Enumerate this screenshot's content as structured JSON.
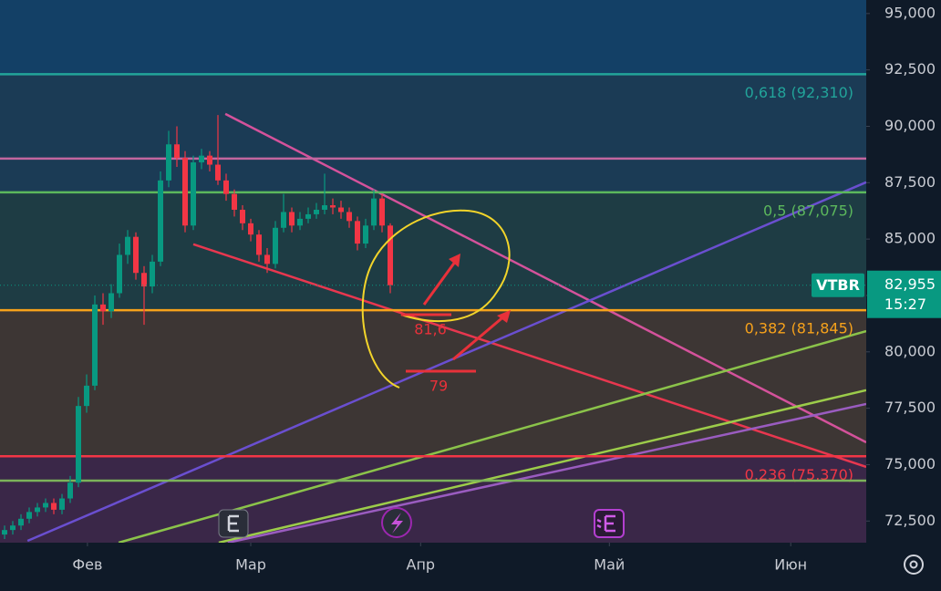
{
  "chart_data": {
    "type": "candlestick",
    "symbol": "VTBR",
    "last_price": 82955,
    "last_price_label": "82,955",
    "last_time": "15:27",
    "last_color": "#089981",
    "up_color": "#089981",
    "down_color": "#f23645",
    "background_color": "#134066",
    "xlim": [
      -0.556,
      105
    ],
    "xticks": [
      {
        "value": 10.1,
        "label": "Фев"
      },
      {
        "value": 30,
        "label": "Мар"
      },
      {
        "value": 50.7,
        "label": "Апр"
      },
      {
        "value": 73.7,
        "label": "Май"
      },
      {
        "value": 95.8,
        "label": "Июн"
      }
    ],
    "ylim": [
      71540,
      95600
    ],
    "yticks": [
      {
        "value": 72500,
        "label": "72,500"
      },
      {
        "value": 75000,
        "label": "75,000"
      },
      {
        "value": 77500,
        "label": "77,500"
      },
      {
        "value": 80000,
        "label": "80,000"
      },
      {
        "value": 82500,
        "label": "82,500"
      },
      {
        "value": 85000,
        "label": "85,000"
      },
      {
        "value": 87500,
        "label": "87,500"
      },
      {
        "value": 90000,
        "label": "90,000"
      },
      {
        "value": 92500,
        "label": "92,500"
      },
      {
        "value": 95000,
        "label": "95,000"
      }
    ],
    "open": [
      71900,
      72100,
      72300,
      72600,
      72900,
      73100,
      73300,
      73000,
      73500,
      74200,
      77600,
      78500,
      82100,
      81800,
      82600,
      84300,
      85100,
      83500,
      82900,
      84000,
      87600,
      89200,
      88600,
      85600,
      88400,
      88700,
      88300,
      87600,
      87000,
      86300,
      85700,
      85200,
      84300,
      83900,
      85500,
      86200,
      85600,
      85900,
      86100,
      86300,
      86500,
      86400,
      86200,
      85800,
      84800,
      85600,
      86800,
      85600
    ],
    "high": [
      72300,
      72500,
      72800,
      73100,
      73300,
      73500,
      73500,
      73700,
      74500,
      78000,
      79000,
      82500,
      82600,
      83000,
      84800,
      85400,
      85300,
      83800,
      84300,
      88000,
      89800,
      90000,
      88900,
      88700,
      89000,
      88900,
      90500,
      87900,
      87200,
      86500,
      85900,
      85400,
      84600,
      85800,
      87000,
      86400,
      86200,
      86400,
      86600,
      87900,
      86800,
      86700,
      86400,
      86000,
      85900,
      87200,
      87000,
      85700
    ],
    "low": [
      71700,
      71900,
      72100,
      72400,
      72700,
      72900,
      72800,
      72800,
      73300,
      74000,
      77300,
      78300,
      81200,
      81500,
      82400,
      83900,
      83200,
      81200,
      82600,
      83800,
      87300,
      88200,
      85300,
      85400,
      88100,
      88000,
      87400,
      86700,
      86000,
      85400,
      84900,
      84000,
      83500,
      83700,
      85300,
      85300,
      85400,
      85700,
      85900,
      86100,
      86100,
      85900,
      85500,
      84500,
      84600,
      85400,
      85300,
      82600
    ],
    "close": [
      72100,
      72300,
      72600,
      72900,
      73100,
      73300,
      73000,
      73500,
      74200,
      77600,
      78500,
      82100,
      81800,
      82600,
      84300,
      85100,
      83500,
      82900,
      84000,
      87600,
      89200,
      88600,
      85600,
      88400,
      88700,
      88300,
      87600,
      87000,
      86300,
      85700,
      85200,
      84300,
      83900,
      85500,
      86200,
      85600,
      85900,
      86100,
      86300,
      86500,
      86400,
      86200,
      85800,
      84800,
      85600,
      86800,
      85600,
      82955
    ],
    "levels": [
      {
        "value": 92310,
        "label": "0,618 (92,310)",
        "color": "#22a49a",
        "fill": "#1b3b55"
      },
      {
        "value": 88570,
        "color": "#c2669f"
      },
      {
        "value": 87075,
        "label": "0,5 (87,075)",
        "color": "#5cb85c",
        "fill": "#1e3c44"
      },
      {
        "value": 81845,
        "label": "0,382 (81,845)",
        "color": "#f7a21b",
        "fill": "#3d3634"
      },
      {
        "value": 75370,
        "label": "0,236 (75,370)",
        "color": "#f23645",
        "fill": "#3a2748"
      },
      {
        "value": 74290,
        "color": "#7cb35a"
      }
    ],
    "trendlines": [
      {
        "x": [
          26.9,
          105
        ],
        "y": [
          90550,
          75990
        ],
        "color": "#d4529b"
      },
      {
        "x": [
          23,
          105
        ],
        "y": [
          84770,
          74900
        ],
        "color": "#e8374f"
      },
      {
        "x": [
          2.8,
          105
        ],
        "y": [
          71620,
          87520
        ],
        "color": "#6a4fd0"
      },
      {
        "x": [
          13.9,
          105
        ],
        "y": [
          71540,
          80920
        ],
        "color": "#8bc34a"
      },
      {
        "x": [
          26.1,
          105
        ],
        "y": [
          71540,
          78300
        ],
        "color": "#9ccc4a"
      },
      {
        "x": [
          27.2,
          105
        ],
        "y": [
          71540,
          77690
        ],
        "color": "#9a5cc0"
      }
    ],
    "annotations": [
      "81,6",
      "79"
    ]
  }
}
